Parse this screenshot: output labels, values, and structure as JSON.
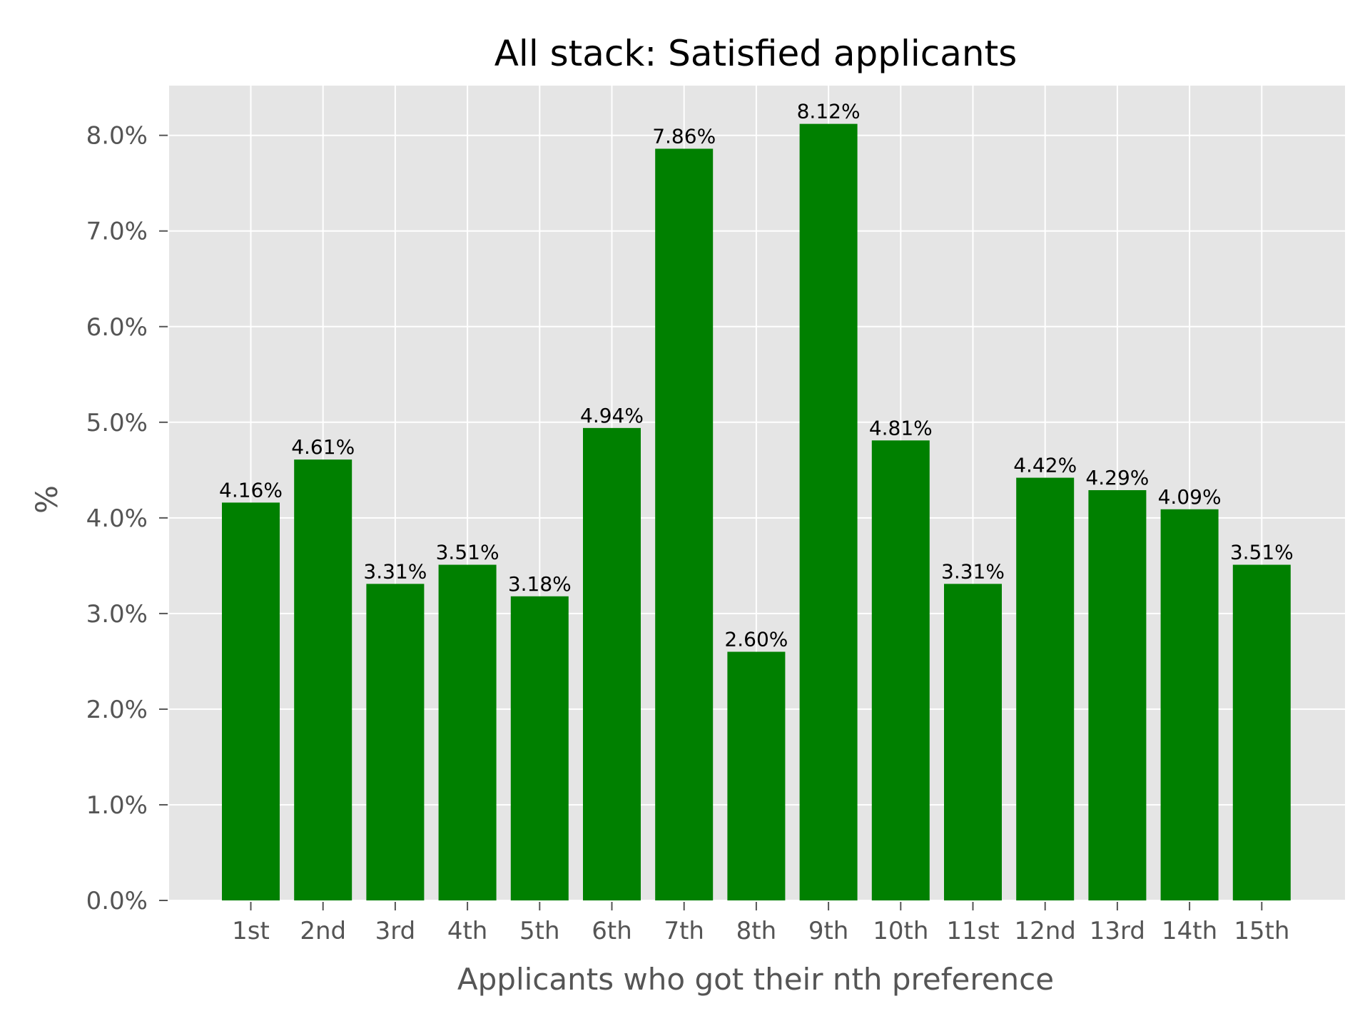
{
  "chart_data": {
    "type": "bar",
    "title": "All stack: Satisfied applicants",
    "xlabel": "Applicants who got their nth preference",
    "ylabel": "%",
    "categories": [
      "1st",
      "2nd",
      "3rd",
      "4th",
      "5th",
      "6th",
      "7th",
      "8th",
      "9th",
      "10th",
      "11st",
      "12nd",
      "13rd",
      "14th",
      "15th"
    ],
    "values": [
      4.16,
      4.61,
      3.31,
      3.51,
      3.18,
      4.94,
      7.86,
      2.6,
      8.12,
      4.81,
      3.31,
      4.42,
      4.29,
      4.09,
      3.51
    ],
    "value_labels": [
      "4.16%",
      "4.61%",
      "3.31%",
      "3.51%",
      "3.18%",
      "4.94%",
      "7.86%",
      "2.60%",
      "8.12%",
      "4.81%",
      "3.31%",
      "4.42%",
      "4.29%",
      "4.09%",
      "3.51%"
    ],
    "yticks": [
      0,
      1,
      2,
      3,
      4,
      5,
      6,
      7,
      8
    ],
    "ytick_labels": [
      "0.0%",
      "1.0%",
      "2.0%",
      "3.0%",
      "4.0%",
      "5.0%",
      "6.0%",
      "7.0%",
      "8.0%"
    ],
    "ylim": [
      0,
      8.52
    ],
    "grid": true,
    "colors": {
      "bar": "#008000",
      "plot_background": "#e5e5e5",
      "grid": "#ffffff",
      "tick_label": "#555555"
    }
  }
}
